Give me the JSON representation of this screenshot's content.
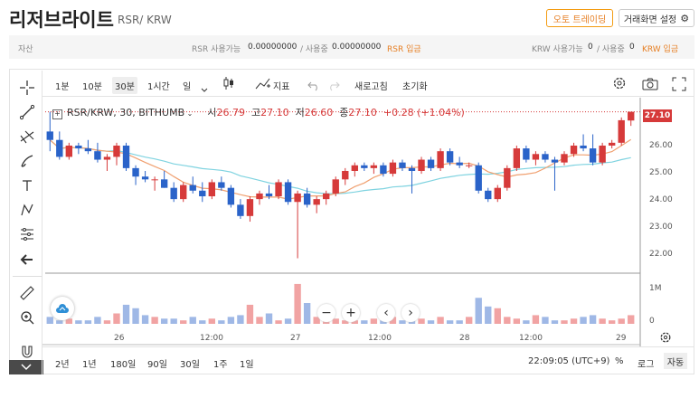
{
  "header": {
    "title": "리저브라이트",
    "pair": "RSR/ KRW",
    "auto_trading_button": "오토 트레이딩",
    "screen_settings_button": "거래화면 설정"
  },
  "asset_bar": {
    "label": "자산",
    "rsr_available_label": "RSR 사용가능",
    "rsr_available_value": "0.00000000",
    "rsr_in_use_label": "/ 사용중",
    "rsr_in_use_value": "0.00000000",
    "rsr_deposit_link": "RSR 입금",
    "krw_available_label": "KRW 사용가능",
    "krw_available_value": "0",
    "krw_in_use_label": "/ 사용중",
    "krw_in_use_value": "0",
    "krw_deposit_link": "KRW 입금"
  },
  "toolbar": {
    "intervals": [
      "1분",
      "10분",
      "30분",
      "1시간",
      "일"
    ],
    "selected_interval": "30분",
    "indicator_label": "지표",
    "refresh_label": "새로고침",
    "reset_label": "초기화"
  },
  "legend": {
    "symbol": "RSR/KRW, 30, BITHUMB",
    "open_label": "시",
    "open": "26.79",
    "high_label": "고",
    "high": "27.10",
    "low_label": "저",
    "low": "26.60",
    "close_label": "종",
    "close": "27.10",
    "change": "+0.28 (+1.04%)"
  },
  "current_price_tag": "27.10",
  "price_axis": [
    "26.00",
    "25.00",
    "24.00",
    "23.00",
    "22.00"
  ],
  "volume_axis": [
    "1M",
    "0"
  ],
  "time_axis": [
    "26",
    "12:00",
    "27",
    "12:00",
    "28",
    "12:00",
    "29"
  ],
  "bottom_bar": {
    "ranges": [
      "2년",
      "1년",
      "180일",
      "90일",
      "30일",
      "1주",
      "1일"
    ],
    "clock": "22:09:05 (UTC+9)",
    "percent_label": "%",
    "log_label": "로그",
    "auto_label": "자동"
  },
  "colors": {
    "up": "#d63a3a",
    "down": "#2a63c9",
    "ma_short": "#f0a070",
    "ma_long": "#7fd3e0",
    "accent": "#e67e22"
  },
  "icons": [
    "crosshair-icon",
    "trendline-icon",
    "fib-icon",
    "brush-icon",
    "text-icon",
    "pattern-icon",
    "measure-icon",
    "back-arrow-icon",
    "ruler-icon",
    "zoom-in-icon",
    "magnet-icon",
    "gear-icon",
    "camera-icon",
    "fullscreen-icon",
    "candle-type-icon",
    "undo-icon",
    "redo-icon",
    "cloud-icon"
  ],
  "chart_data": {
    "type": "candlestick",
    "ylim": [
      21.5,
      27.6
    ],
    "candles": [
      {
        "o": 26.4,
        "h": 27.1,
        "l": 25.7,
        "c": 26.1
      },
      {
        "o": 26.1,
        "h": 26.4,
        "l": 25.4,
        "c": 25.5
      },
      {
        "o": 25.5,
        "h": 26.0,
        "l": 25.4,
        "c": 25.9
      },
      {
        "o": 25.9,
        "h": 26.0,
        "l": 25.6,
        "c": 25.8
      },
      {
        "o": 25.8,
        "h": 26.1,
        "l": 25.6,
        "c": 25.7
      },
      {
        "o": 25.7,
        "h": 26.0,
        "l": 25.3,
        "c": 25.4
      },
      {
        "o": 25.4,
        "h": 25.6,
        "l": 25.0,
        "c": 25.5
      },
      {
        "o": 25.5,
        "h": 26.0,
        "l": 25.2,
        "c": 25.9
      },
      {
        "o": 25.9,
        "h": 26.0,
        "l": 25.0,
        "c": 25.1
      },
      {
        "o": 25.1,
        "h": 25.2,
        "l": 24.5,
        "c": 24.8
      },
      {
        "o": 24.8,
        "h": 25.0,
        "l": 24.6,
        "c": 24.7
      },
      {
        "o": 24.7,
        "h": 24.8,
        "l": 24.3,
        "c": 24.7
      },
      {
        "o": 24.7,
        "h": 25.0,
        "l": 24.4,
        "c": 24.4
      },
      {
        "o": 24.4,
        "h": 24.6,
        "l": 23.9,
        "c": 24.0
      },
      {
        "o": 24.0,
        "h": 24.6,
        "l": 23.9,
        "c": 24.5
      },
      {
        "o": 24.5,
        "h": 24.8,
        "l": 24.2,
        "c": 24.3
      },
      {
        "o": 24.3,
        "h": 24.6,
        "l": 23.9,
        "c": 24.1
      },
      {
        "o": 24.1,
        "h": 24.7,
        "l": 24.0,
        "c": 24.6
      },
      {
        "o": 24.6,
        "h": 24.8,
        "l": 24.3,
        "c": 24.4
      },
      {
        "o": 24.4,
        "h": 24.5,
        "l": 23.7,
        "c": 23.8
      },
      {
        "o": 23.8,
        "h": 24.0,
        "l": 23.3,
        "c": 23.4
      },
      {
        "o": 23.4,
        "h": 24.1,
        "l": 23.2,
        "c": 24.0
      },
      {
        "o": 24.0,
        "h": 24.3,
        "l": 23.8,
        "c": 24.2
      },
      {
        "o": 24.2,
        "h": 24.5,
        "l": 24.0,
        "c": 24.1
      },
      {
        "o": 24.1,
        "h": 24.7,
        "l": 24.0,
        "c": 24.6
      },
      {
        "o": 24.6,
        "h": 24.7,
        "l": 23.8,
        "c": 23.9
      },
      {
        "o": 23.9,
        "h": 24.3,
        "l": 21.9,
        "c": 24.2
      },
      {
        "o": 24.2,
        "h": 24.4,
        "l": 23.7,
        "c": 23.8
      },
      {
        "o": 23.8,
        "h": 24.1,
        "l": 23.5,
        "c": 24.0
      },
      {
        "o": 24.0,
        "h": 24.3,
        "l": 23.8,
        "c": 24.2
      },
      {
        "o": 24.2,
        "h": 24.8,
        "l": 24.1,
        "c": 24.7
      },
      {
        "o": 24.7,
        "h": 25.1,
        "l": 24.5,
        "c": 25.0
      },
      {
        "o": 25.0,
        "h": 25.3,
        "l": 24.8,
        "c": 25.2
      },
      {
        "o": 25.2,
        "h": 25.3,
        "l": 25.0,
        "c": 25.1
      },
      {
        "o": 25.1,
        "h": 25.3,
        "l": 24.9,
        "c": 25.2
      },
      {
        "o": 25.2,
        "h": 25.3,
        "l": 24.8,
        "c": 24.9
      },
      {
        "o": 24.9,
        "h": 25.4,
        "l": 24.8,
        "c": 25.3
      },
      {
        "o": 25.3,
        "h": 25.4,
        "l": 25.0,
        "c": 25.1
      },
      {
        "o": 25.1,
        "h": 25.2,
        "l": 24.2,
        "c": 25.0
      },
      {
        "o": 25.0,
        "h": 25.5,
        "l": 24.9,
        "c": 25.4
      },
      {
        "o": 25.4,
        "h": 25.5,
        "l": 25.0,
        "c": 25.1
      },
      {
        "o": 25.1,
        "h": 25.8,
        "l": 25.0,
        "c": 25.7
      },
      {
        "o": 25.7,
        "h": 25.8,
        "l": 25.2,
        "c": 25.3
      },
      {
        "o": 25.3,
        "h": 25.5,
        "l": 25.1,
        "c": 25.2
      },
      {
        "o": 25.2,
        "h": 25.3,
        "l": 25.1,
        "c": 25.2
      },
      {
        "o": 25.2,
        "h": 25.3,
        "l": 24.2,
        "c": 24.3
      },
      {
        "o": 24.3,
        "h": 24.4,
        "l": 23.9,
        "c": 24.0
      },
      {
        "o": 24.0,
        "h": 24.5,
        "l": 23.9,
        "c": 24.4
      },
      {
        "o": 24.4,
        "h": 25.2,
        "l": 24.3,
        "c": 25.1
      },
      {
        "o": 25.1,
        "h": 25.9,
        "l": 25.0,
        "c": 25.8
      },
      {
        "o": 25.8,
        "h": 25.9,
        "l": 25.3,
        "c": 25.4
      },
      {
        "o": 25.4,
        "h": 25.7,
        "l": 25.2,
        "c": 25.6
      },
      {
        "o": 25.6,
        "h": 25.7,
        "l": 25.3,
        "c": 25.4
      },
      {
        "o": 25.4,
        "h": 25.5,
        "l": 24.3,
        "c": 25.3
      },
      {
        "o": 25.3,
        "h": 25.7,
        "l": 25.2,
        "c": 25.6
      },
      {
        "o": 25.6,
        "h": 26.0,
        "l": 25.5,
        "c": 25.9
      },
      {
        "o": 25.9,
        "h": 26.3,
        "l": 25.7,
        "c": 25.8
      },
      {
        "o": 25.8,
        "h": 26.3,
        "l": 25.2,
        "c": 25.3
      },
      {
        "o": 25.3,
        "h": 26.0,
        "l": 25.2,
        "c": 25.9
      },
      {
        "o": 25.9,
        "h": 26.1,
        "l": 25.8,
        "c": 26.0
      },
      {
        "o": 26.0,
        "h": 26.9,
        "l": 25.9,
        "c": 26.8
      },
      {
        "o": 26.79,
        "h": 27.1,
        "l": 26.6,
        "c": 27.1
      }
    ],
    "volume": [
      0.2,
      0.1,
      0.15,
      0.1,
      0.1,
      0.2,
      0.1,
      0.3,
      0.55,
      0.45,
      0.25,
      0.2,
      0.15,
      0.15,
      0.1,
      0.2,
      0.1,
      0.15,
      0.1,
      0.2,
      0.25,
      0.55,
      0.2,
      0.3,
      0.1,
      0.15,
      1.15,
      0.6,
      0.2,
      0.2,
      0.15,
      0.1,
      0.1,
      0.1,
      0.15,
      0.1,
      0.2,
      0.1,
      0.15,
      0.15,
      0.1,
      0.2,
      0.1,
      0.1,
      0.2,
      0.75,
      0.5,
      0.45,
      0.2,
      0.15,
      0.1,
      0.25,
      0.2,
      0.1,
      0.1,
      0.15,
      0.2,
      0.25,
      0.15,
      0.1,
      0.15,
      0.25
    ]
  }
}
